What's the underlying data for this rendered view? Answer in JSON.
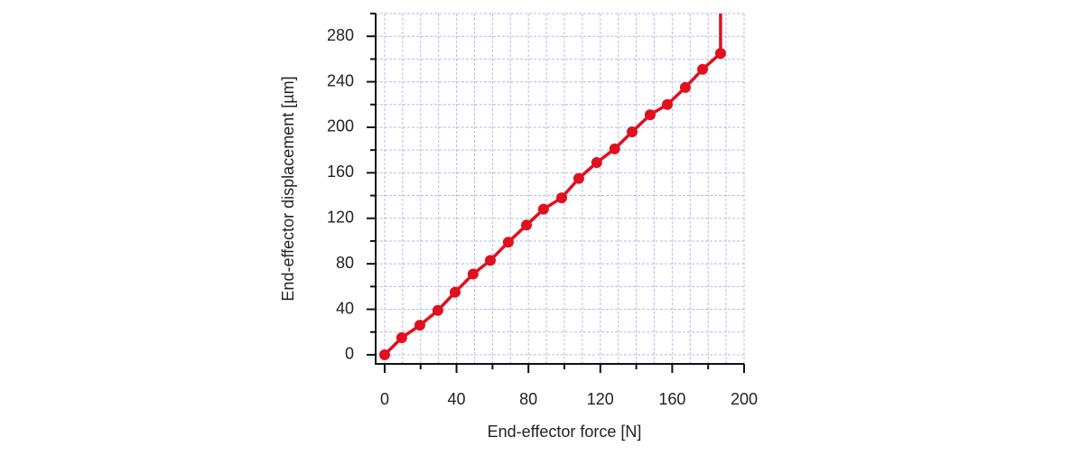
{
  "chart_data": {
    "type": "line",
    "xlabel": "End-effector force [N]",
    "ylabel": "End-effector displacement [µm]",
    "xlim": [
      -5,
      200
    ],
    "ylim": [
      -8,
      300
    ],
    "xticks": [
      0,
      40,
      80,
      120,
      160,
      200
    ],
    "yticks": [
      0,
      40,
      80,
      120,
      160,
      200,
      240,
      280
    ],
    "xminorticks": [
      20,
      60,
      100,
      140,
      180
    ],
    "yminorticks": [
      20,
      60,
      100,
      140,
      180,
      220,
      260,
      300
    ],
    "xgrid": [
      0,
      10,
      20,
      30,
      40,
      50,
      60,
      70,
      80,
      90,
      100,
      110,
      120,
      130,
      140,
      150,
      160,
      170,
      180,
      190,
      200
    ],
    "ygrid": [
      0,
      20,
      40,
      60,
      80,
      100,
      120,
      140,
      160,
      180,
      200,
      220,
      240,
      260,
      280,
      300
    ],
    "grid": true,
    "series": [
      {
        "color": "#e0101e",
        "markers": true,
        "x": [
          0,
          9.5,
          19.6,
          29.6,
          39.2,
          49.2,
          58.8,
          68.8,
          78.9,
          88.4,
          98.5,
          108,
          118,
          128,
          137.7,
          147.7,
          157.3,
          167.3,
          176.9,
          186.9
        ],
        "values": [
          0,
          15,
          26,
          39,
          55,
          71,
          83,
          99,
          114,
          128,
          138,
          155,
          169,
          181,
          196,
          211,
          220,
          235,
          251,
          265
        ]
      },
      {
        "color": "#e0101e",
        "markers": false,
        "x": [
          186.9,
          186.9
        ],
        "values": [
          265,
          300
        ]
      }
    ]
  }
}
